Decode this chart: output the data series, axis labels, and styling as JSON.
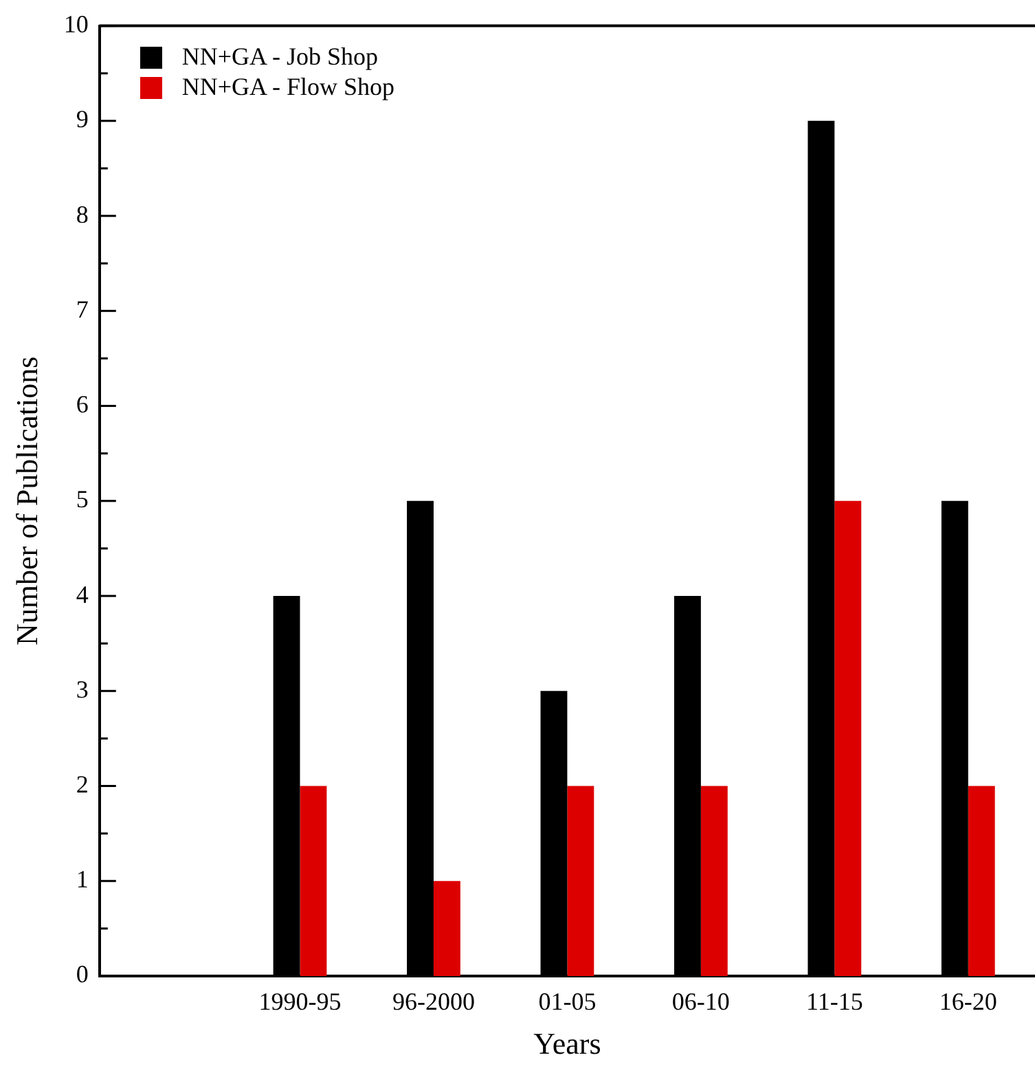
{
  "chart_data": {
    "type": "bar",
    "xlabel": "Years",
    "ylabel": "Number of Publications",
    "categories": [
      null,
      "1990-95",
      "96-2000",
      "01-05",
      "06-10",
      "11-15",
      "16-20"
    ],
    "series": [
      {
        "name": "NN+GA - Job Shop",
        "color": "#000000",
        "values": [
          null,
          4,
          5,
          3,
          4,
          9,
          5
        ]
      },
      {
        "name": "NN+GA - Flow Shop",
        "color": "#dd0000",
        "values": [
          null,
          2,
          1,
          2,
          2,
          5,
          2
        ]
      }
    ],
    "ylim": [
      0,
      10
    ],
    "yticks": [
      0,
      1,
      2,
      3,
      4,
      5,
      6,
      7,
      8,
      9,
      10
    ],
    "grid": false,
    "legend": "top left"
  }
}
